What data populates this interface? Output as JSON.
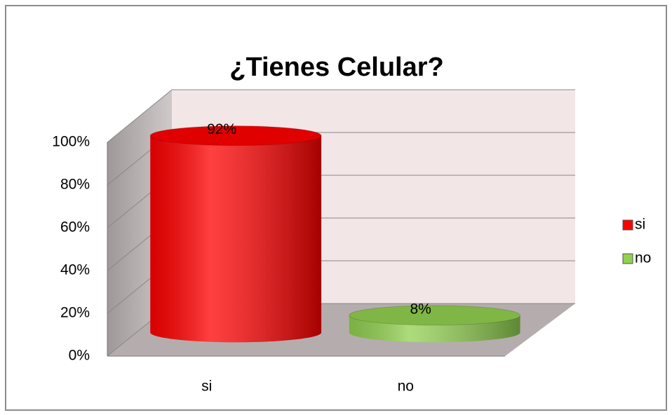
{
  "chart_data": {
    "type": "cylinder",
    "title": "¿Tienes Celular?",
    "categories": [
      "si",
      "no"
    ],
    "values": [
      92,
      8
    ],
    "value_labels": [
      "92%",
      "8%"
    ],
    "colors": [
      "#ff0000",
      "#92d050"
    ],
    "ylim": [
      0,
      100
    ],
    "yticks": [
      {
        "value": 0,
        "label": "0%"
      },
      {
        "value": 20,
        "label": "20%"
      },
      {
        "value": 40,
        "label": "40%"
      },
      {
        "value": 60,
        "label": "60%"
      },
      {
        "value": 80,
        "label": "80%"
      },
      {
        "value": 100,
        "label": "100%"
      }
    ],
    "grid": true,
    "legend": "right"
  }
}
